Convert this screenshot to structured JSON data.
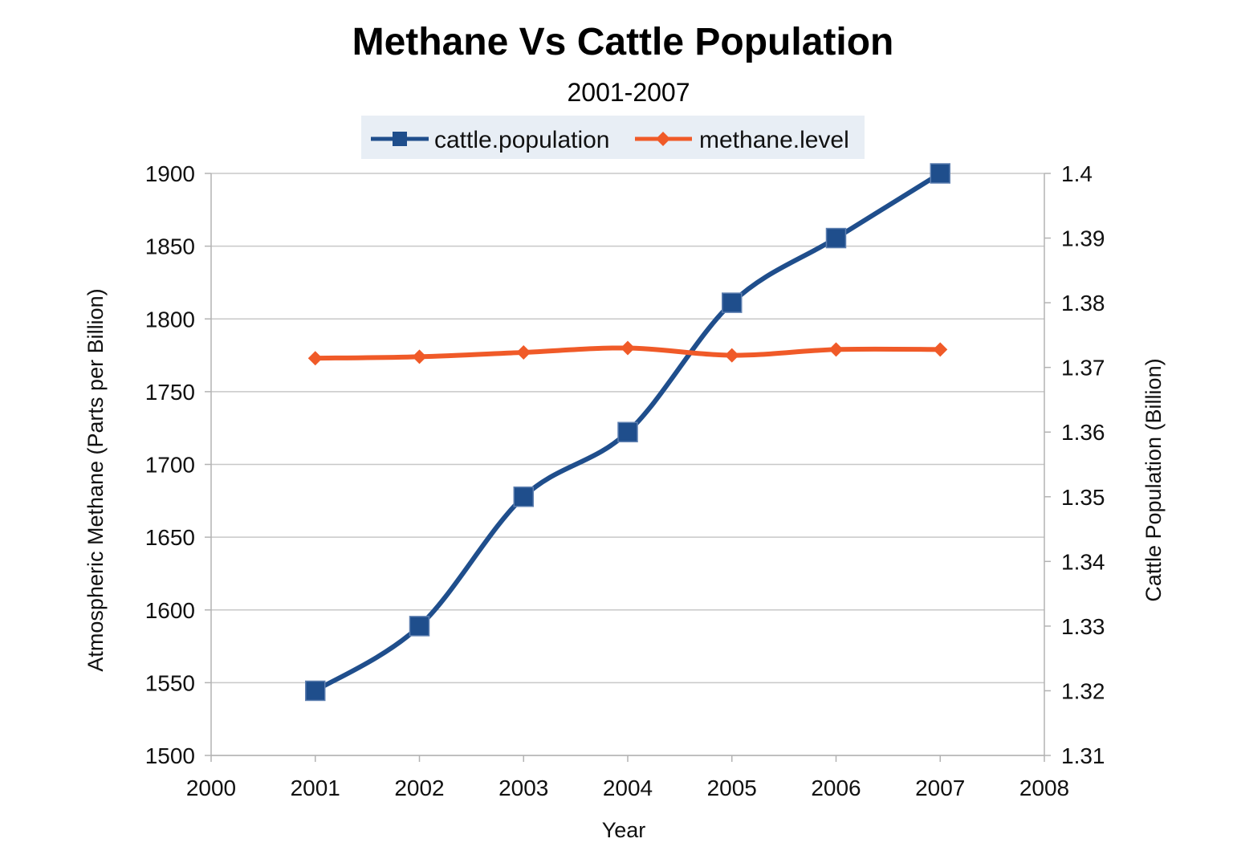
{
  "chart_data": {
    "type": "line",
    "title": "Methane Vs Cattle Population",
    "subtitle": "2001-2007",
    "xlabel": "Year",
    "ylabel_left": "Atmospheric Methane (Parts per Billion)",
    "ylabel_right": "Cattle Population (Billion)",
    "x_ticks": [
      "2000",
      "2001",
      "2002",
      "2003",
      "2004",
      "2005",
      "2006",
      "2007",
      "2008"
    ],
    "y_left_ticks": [
      "1500",
      "1550",
      "1600",
      "1650",
      "1700",
      "1750",
      "1800",
      "1850",
      "1900"
    ],
    "y_right_ticks": [
      "1.31",
      "1.32",
      "1.33",
      "1.34",
      "1.35",
      "1.36",
      "1.37",
      "1.38",
      "1.39",
      "1.4"
    ],
    "xlim": [
      2000,
      2008
    ],
    "ylim_left": [
      1500,
      1900
    ],
    "ylim_right": [
      1.31,
      1.4
    ],
    "grid": true,
    "legend_position": "top-center",
    "series": [
      {
        "name": "cattle.population",
        "axis": "right",
        "color": "#1f4e8c",
        "marker": "square",
        "x": [
          2001,
          2002,
          2003,
          2004,
          2005,
          2006,
          2007
        ],
        "values": [
          1.32,
          1.33,
          1.35,
          1.36,
          1.38,
          1.39,
          1.4
        ]
      },
      {
        "name": "methane.level",
        "axis": "left",
        "color": "#f05a28",
        "marker": "diamond",
        "x": [
          2001,
          2002,
          2003,
          2004,
          2005,
          2006,
          2007
        ],
        "values": [
          1773,
          1774,
          1777,
          1780,
          1775,
          1779,
          1779
        ]
      }
    ]
  }
}
